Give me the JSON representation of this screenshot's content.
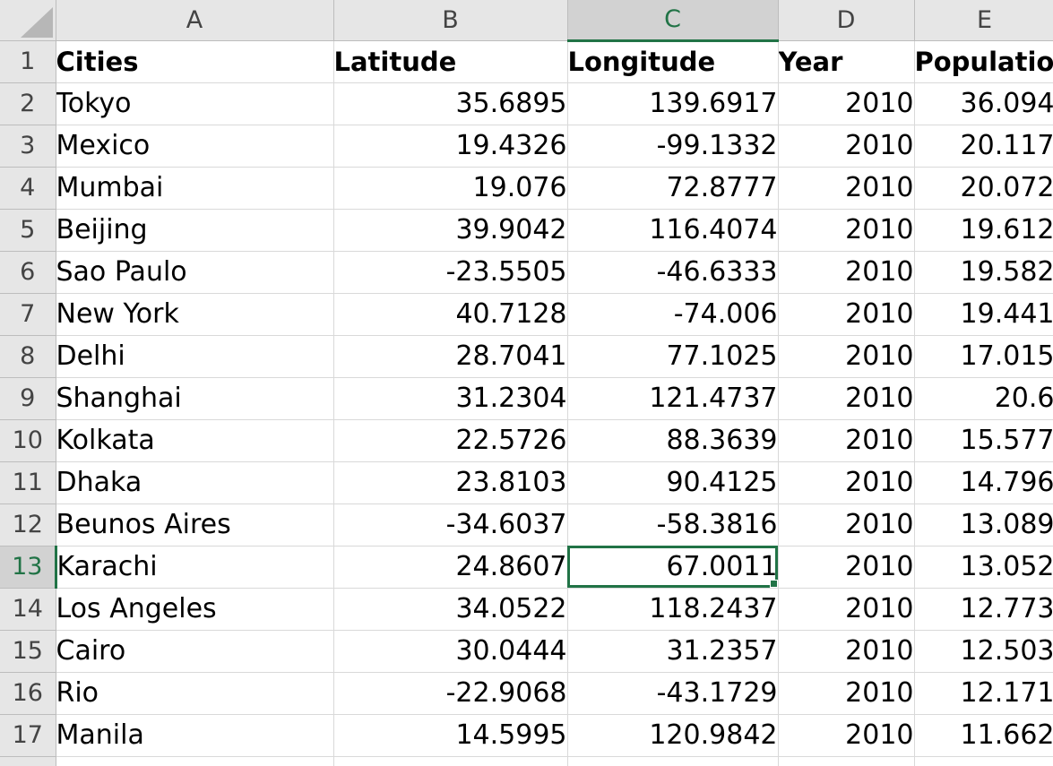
{
  "columns": [
    "A",
    "B",
    "C",
    "D",
    "E"
  ],
  "header": {
    "row_number": "1",
    "cells": [
      "Cities",
      "Latitude",
      "Longitude",
      "Year",
      "Population"
    ]
  },
  "rows": [
    {
      "num": "2",
      "cities": "Tokyo",
      "latitude": "35.6895",
      "longitude": "139.6917",
      "year": "2010",
      "population": "36.094"
    },
    {
      "num": "3",
      "cities": "Mexico",
      "latitude": "19.4326",
      "longitude": "-99.1332",
      "year": "2010",
      "population": "20.117"
    },
    {
      "num": "4",
      "cities": "Mumbai",
      "latitude": "19.076",
      "longitude": "72.8777",
      "year": "2010",
      "population": "20.072"
    },
    {
      "num": "5",
      "cities": "Beijing",
      "latitude": "39.9042",
      "longitude": "116.4074",
      "year": "2010",
      "population": "19.612"
    },
    {
      "num": "6",
      "cities": "Sao Paulo",
      "latitude": "-23.5505",
      "longitude": "-46.6333",
      "year": "2010",
      "population": "19.582"
    },
    {
      "num": "7",
      "cities": "New York",
      "latitude": "40.7128",
      "longitude": "-74.006",
      "year": "2010",
      "population": "19.441"
    },
    {
      "num": "8",
      "cities": "Delhi",
      "latitude": "28.7041",
      "longitude": "77.1025",
      "year": "2010",
      "population": "17.015"
    },
    {
      "num": "9",
      "cities": "Shanghai",
      "latitude": "31.2304",
      "longitude": "121.4737",
      "year": "2010",
      "population": "20.6"
    },
    {
      "num": "10",
      "cities": "Kolkata",
      "latitude": "22.5726",
      "longitude": "88.3639",
      "year": "2010",
      "population": "15.577"
    },
    {
      "num": "11",
      "cities": "Dhaka",
      "latitude": "23.8103",
      "longitude": "90.4125",
      "year": "2010",
      "population": "14.796"
    },
    {
      "num": "12",
      "cities": "Beunos Aires",
      "latitude": "-34.6037",
      "longitude": "-58.3816",
      "year": "2010",
      "population": "13.089"
    },
    {
      "num": "13",
      "cities": "Karachi",
      "latitude": "24.8607",
      "longitude": "67.0011",
      "year": "2010",
      "population": "13.052"
    },
    {
      "num": "14",
      "cities": "Los Angeles",
      "latitude": "34.0522",
      "longitude": "118.2437",
      "year": "2010",
      "population": "12.773"
    },
    {
      "num": "15",
      "cities": "Cairo",
      "latitude": "30.0444",
      "longitude": "31.2357",
      "year": "2010",
      "population": "12.503"
    },
    {
      "num": "16",
      "cities": "Rio",
      "latitude": "-22.9068",
      "longitude": "-43.1729",
      "year": "2010",
      "population": "12.171"
    },
    {
      "num": "17",
      "cities": "Manila",
      "latitude": "14.5995",
      "longitude": "120.9842",
      "year": "2010",
      "population": "11.662"
    }
  ],
  "selection": {
    "row": "13",
    "column": "C"
  },
  "colors": {
    "accent": "#217346",
    "header_bg": "#e6e6e6",
    "header_selected_bg": "#d2d2d2",
    "gridline": "#d9d9d9"
  }
}
